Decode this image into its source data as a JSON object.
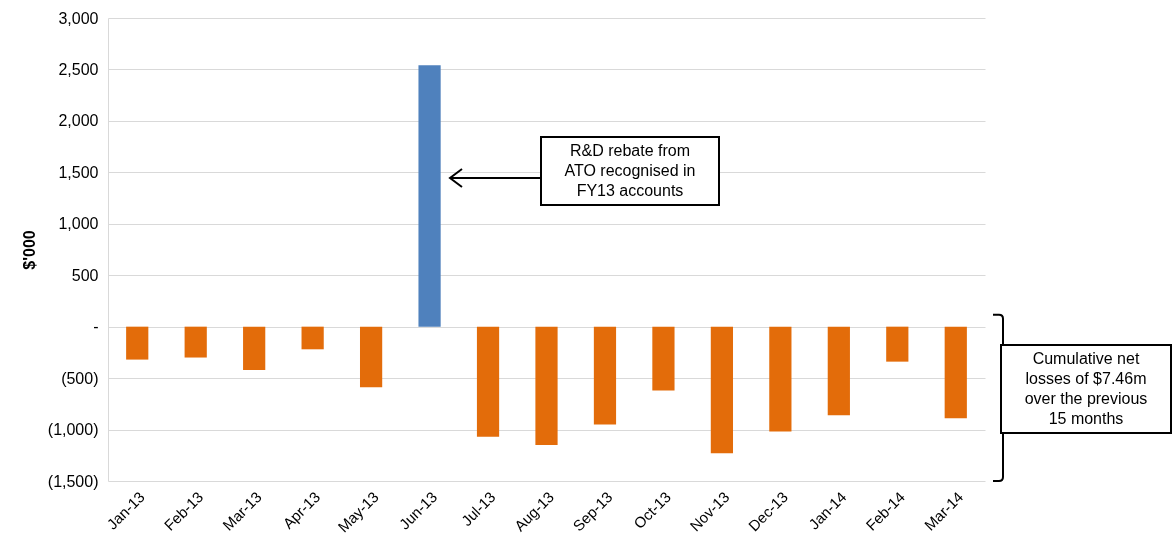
{
  "chart_data": {
    "type": "bar",
    "ylabel": "$'000",
    "categories": [
      "Jan-13",
      "Feb-13",
      "Mar-13",
      "Apr-13",
      "May-13",
      "Jun-13",
      "Jul-13",
      "Aug-13",
      "Sep-13",
      "Oct-13",
      "Nov-13",
      "Dec-13",
      "Jan-14",
      "Feb-14",
      "Mar-14"
    ],
    "values": [
      -320,
      -300,
      -420,
      -220,
      -590,
      2540,
      -1070,
      -1150,
      -950,
      -620,
      -1230,
      -1020,
      -860,
      -340,
      -890
    ],
    "colors": [
      "#e36c0a",
      "#e36c0a",
      "#e36c0a",
      "#e36c0a",
      "#e36c0a",
      "#4f81bd",
      "#e36c0a",
      "#e36c0a",
      "#e36c0a",
      "#e36c0a",
      "#e36c0a",
      "#e36c0a",
      "#e36c0a",
      "#e36c0a",
      "#e36c0a"
    ],
    "ylim": [
      -1500,
      3000
    ],
    "yticks": [
      {
        "value": -1500,
        "label": "(1,500)"
      },
      {
        "value": -1000,
        "label": "(1,000)"
      },
      {
        "value": -500,
        "label": "(500)"
      },
      {
        "value": 0,
        "label": "-"
      },
      500,
      {
        "value": 1000,
        "label": "1,000"
      },
      {
        "value": 1500,
        "label": "1,500"
      },
      {
        "value": 2000,
        "label": "2,000"
      },
      {
        "value": 2500,
        "label": "2,500"
      },
      {
        "value": 3000,
        "label": "3,000"
      }
    ],
    "grid": "y",
    "annotations": [
      "R&D rebate from ATO recognised in FY13 accounts",
      "Cumulative net losses of $7.46m over the previous 15 months"
    ]
  }
}
